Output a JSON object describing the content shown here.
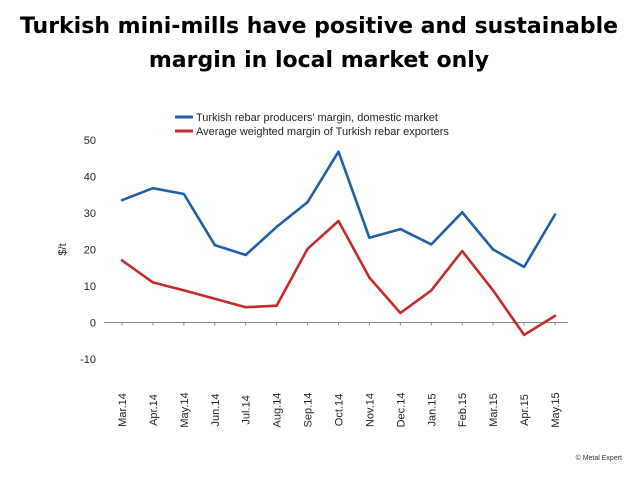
{
  "title": {
    "line1": "Turkish mini-mills have positive and sustainable",
    "line2": "margin in local market only"
  },
  "copyright": "© Metal Expert",
  "chart_data": {
    "type": "line",
    "categories": [
      "Mar.14",
      "Apr.14",
      "May.14",
      "Jun.14",
      "Jul.14",
      "Aug.14",
      "Sep.14",
      "Oct.14",
      "Nov.14",
      "Dec.14",
      "Jan.15",
      "Feb.15",
      "Mar.15",
      "Apr.15",
      "May.15"
    ],
    "series": [
      {
        "name": "Turkish rebar producers' margin, domestic market",
        "color": "#1f5fa6",
        "values": [
          33.5,
          36.8,
          35.2,
          21.2,
          18.5,
          26.2,
          33,
          46.8,
          23.2,
          25.6,
          21.4,
          30.2,
          20,
          15.2,
          29.6
        ]
      },
      {
        "name": "Average weighted margin of Turkish rebar exporters",
        "color": "#c42b2b",
        "values": [
          17,
          11,
          8.8,
          6.5,
          4.2,
          4.6,
          20.2,
          27.8,
          12.3,
          2.6,
          8.8,
          19.6,
          8.8,
          -3.4,
          1.8
        ]
      }
    ],
    "ylabel": "$/t",
    "xlabel": "",
    "ylim": [
      -10,
      50
    ],
    "yticks": [
      -10,
      0,
      10,
      20,
      30,
      40,
      50
    ],
    "grid": false,
    "legend": "top"
  }
}
